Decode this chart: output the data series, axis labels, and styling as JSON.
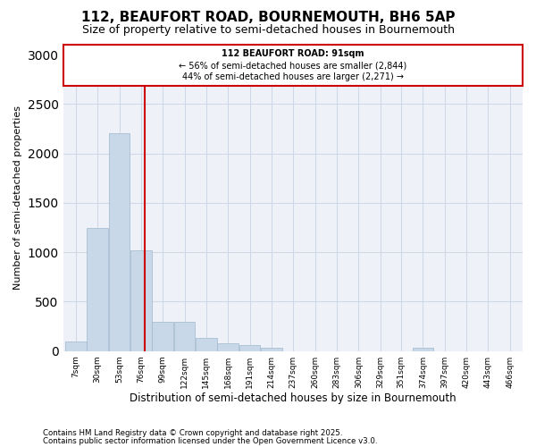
{
  "title": "112, BEAUFORT ROAD, BOURNEMOUTH, BH6 5AP",
  "subtitle": "Size of property relative to semi-detached houses in Bournemouth",
  "xlabel": "Distribution of semi-detached houses by size in Bournemouth",
  "ylabel": "Number of semi-detached properties",
  "footnote1": "Contains HM Land Registry data © Crown copyright and database right 2025.",
  "footnote2": "Contains public sector information licensed under the Open Government Licence v3.0.",
  "property_size": 91,
  "property_label": "112 BEAUFORT ROAD: 91sqm",
  "pct_smaller": 56,
  "count_smaller": 2844,
  "pct_larger": 44,
  "count_larger": 2271,
  "bar_color": "#c8d8e8",
  "bar_edge_color": "#a0b8d0",
  "vline_color": "#cc0000",
  "annotation_box_color": "#cc0000",
  "grid_color": "#d0d8e8",
  "bg_color": "#eef2f8",
  "categories": [
    "7sqm",
    "30sqm",
    "53sqm",
    "76sqm",
    "99sqm",
    "122sqm",
    "145sqm",
    "168sqm",
    "191sqm",
    "214sqm",
    "237sqm",
    "260sqm",
    "283sqm",
    "306sqm",
    "329sqm",
    "351sqm",
    "374sqm",
    "397sqm",
    "420sqm",
    "443sqm",
    "466sqm"
  ],
  "bin_edges": [
    7,
    30,
    53,
    76,
    99,
    122,
    145,
    168,
    191,
    214,
    237,
    260,
    283,
    306,
    329,
    351,
    374,
    397,
    420,
    443,
    466
  ],
  "values": [
    100,
    1250,
    2200,
    1020,
    300,
    300,
    130,
    80,
    60,
    30,
    0,
    0,
    0,
    0,
    0,
    0,
    30,
    0,
    0,
    0,
    0
  ],
  "ylim": [
    0,
    3100
  ],
  "yticks": [
    0,
    500,
    1000,
    1500,
    2000,
    2500,
    3000
  ]
}
